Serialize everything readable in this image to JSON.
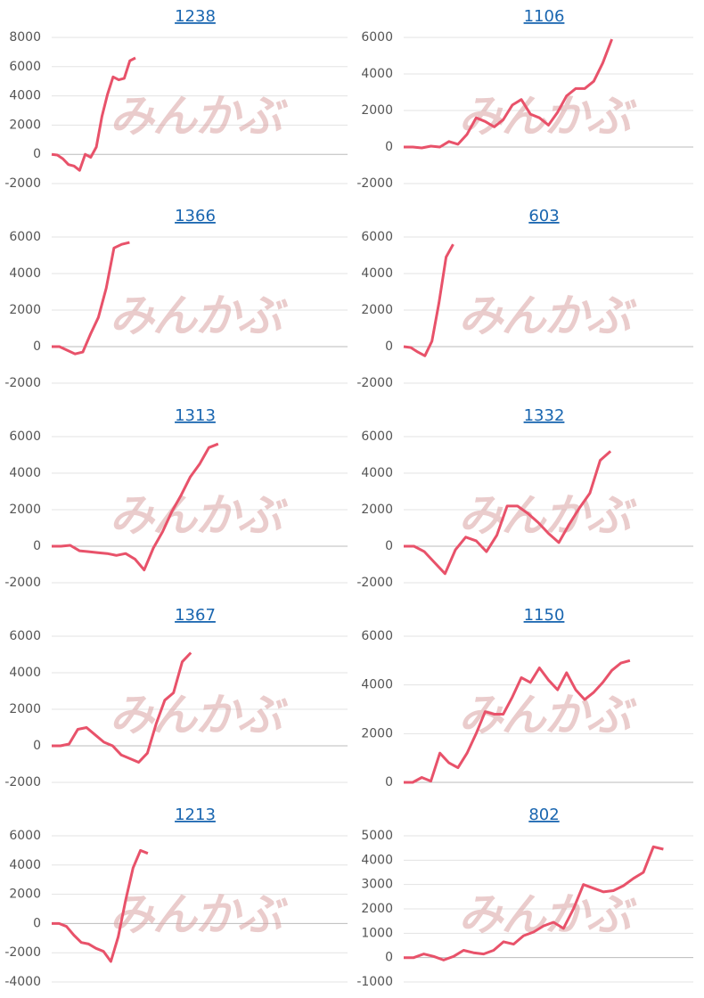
{
  "watermark": "みんかぶ",
  "chart_data": [
    {
      "type": "line",
      "title": "1238",
      "ylim": [
        -2000,
        8000
      ],
      "yticks": [
        -2000,
        0,
        2000,
        4000,
        6000,
        8000
      ],
      "grid": true,
      "series": [
        {
          "color": "#e8526a",
          "values": [
            0,
            -50,
            -300,
            -700,
            -800,
            -1100,
            0,
            -200,
            500,
            2600,
            4100,
            5300,
            5100,
            5200,
            6400,
            6600,
            null,
            null,
            null,
            null,
            null,
            null,
            null,
            null,
            null,
            null,
            null,
            null,
            null,
            null,
            null,
            null,
            null,
            null,
            null,
            null,
            null,
            null,
            null,
            null,
            null,
            null,
            null,
            null,
            null,
            null,
            null,
            null,
            null,
            null,
            null,
            null,
            null,
            null
          ]
        }
      ]
    },
    {
      "type": "line",
      "title": "1106",
      "ylim": [
        -2000,
        6000
      ],
      "yticks": [
        -2000,
        0,
        2000,
        4000,
        6000
      ],
      "grid": true,
      "series": [
        {
          "color": "#e8526a",
          "values": [
            0,
            0,
            -50,
            50,
            0,
            300,
            150,
            700,
            1600,
            1400,
            1100,
            1500,
            2300,
            2600,
            1800,
            1600,
            1200,
            1900,
            2800,
            3200,
            3200,
            3600,
            4600,
            5900,
            null,
            null,
            null,
            null,
            null,
            null,
            null,
            null,
            null
          ]
        }
      ]
    },
    {
      "type": "line",
      "title": "1366",
      "ylim": [
        -2000,
        6000
      ],
      "yticks": [
        -2000,
        0,
        2000,
        4000,
        6000
      ],
      "grid": true,
      "series": [
        {
          "color": "#e8526a",
          "values": [
            0,
            0,
            -200,
            -400,
            -300,
            700,
            1600,
            3200,
            5400,
            5600,
            5700,
            null,
            null,
            null,
            null,
            null,
            null,
            null,
            null,
            null,
            null,
            null,
            null,
            null,
            null,
            null,
            null,
            null,
            null,
            null,
            null,
            null,
            null,
            null,
            null,
            null,
            null,
            null,
            null
          ]
        }
      ]
    },
    {
      "type": "line",
      "title": "603",
      "ylim": [
        -2000,
        6000
      ],
      "yticks": [
        -2000,
        0,
        2000,
        4000,
        6000
      ],
      "grid": true,
      "series": [
        {
          "color": "#e8526a",
          "values": [
            0,
            -50,
            -300,
            -500,
            300,
            2400,
            4900,
            5600,
            null,
            null,
            null,
            null,
            null,
            null,
            null,
            null,
            null,
            null,
            null,
            null,
            null,
            null,
            null,
            null,
            null,
            null,
            null,
            null,
            null,
            null,
            null,
            null,
            null,
            null,
            null,
            null,
            null,
            null,
            null,
            null,
            null,
            null
          ]
        }
      ]
    },
    {
      "type": "line",
      "title": "1313",
      "ylim": [
        -2000,
        6000
      ],
      "yticks": [
        -2000,
        0,
        2000,
        4000,
        6000
      ],
      "grid": true,
      "series": [
        {
          "color": "#e8526a",
          "values": [
            0,
            0,
            50,
            -250,
            -300,
            -350,
            -400,
            -500,
            -400,
            -700,
            -1300,
            -100,
            800,
            1900,
            2800,
            3800,
            4500,
            5400,
            5600,
            null,
            null,
            null,
            null,
            null,
            null,
            null,
            null,
            null,
            null,
            null,
            null,
            null,
            null
          ]
        }
      ]
    },
    {
      "type": "line",
      "title": "1332",
      "ylim": [
        -2000,
        6000
      ],
      "yticks": [
        -2000,
        0,
        2000,
        4000,
        6000
      ],
      "grid": true,
      "series": [
        {
          "color": "#e8526a",
          "values": [
            0,
            0,
            -300,
            -900,
            -1500,
            -200,
            500,
            300,
            -300,
            600,
            2200,
            2200,
            1800,
            1300,
            700,
            200,
            1200,
            2100,
            2900,
            4700,
            5200,
            null,
            null,
            null,
            null,
            null,
            null,
            null,
            null
          ]
        }
      ]
    },
    {
      "type": "line",
      "title": "1367",
      "ylim": [
        -2000,
        6000
      ],
      "yticks": [
        -2000,
        0,
        2000,
        4000,
        6000
      ],
      "grid": true,
      "series": [
        {
          "color": "#e8526a",
          "values": [
            0,
            0,
            100,
            900,
            1000,
            600,
            200,
            0,
            -500,
            -700,
            -900,
            -400,
            1200,
            2500,
            2900,
            4600,
            5100,
            null,
            null,
            null,
            null,
            null,
            null,
            null,
            null,
            null,
            null,
            null,
            null,
            null,
            null,
            null,
            null,
            null,
            null
          ]
        }
      ]
    },
    {
      "type": "line",
      "title": "1150",
      "ylim": [
        0,
        6000
      ],
      "yticks": [
        0,
        2000,
        4000,
        6000
      ],
      "grid": true,
      "series": [
        {
          "color": "#e8526a",
          "values": [
            0,
            0,
            200,
            50,
            1200,
            800,
            600,
            1200,
            2000,
            2900,
            2800,
            2800,
            3500,
            4300,
            4100,
            4700,
            4200,
            3800,
            4500,
            3800,
            3400,
            3700,
            4100,
            4600,
            4900,
            5000,
            null,
            null,
            null,
            null,
            null,
            null,
            null
          ]
        }
      ]
    },
    {
      "type": "line",
      "title": "1213",
      "ylim": [
        -4000,
        6000
      ],
      "yticks": [
        -4000,
        -2000,
        0,
        2000,
        4000,
        6000
      ],
      "grid": true,
      "series": [
        {
          "color": "#e8526a",
          "values": [
            0,
            0,
            -200,
            -800,
            -1300,
            -1400,
            -1700,
            -1900,
            -2600,
            -900,
            1600,
            3800,
            5000,
            4800,
            null,
            null,
            null,
            null,
            null,
            null,
            null,
            null,
            null,
            null,
            null,
            null,
            null,
            null,
            null,
            null,
            null,
            null,
            null,
            null,
            null,
            null,
            null,
            null,
            null,
            null,
            null
          ]
        }
      ]
    },
    {
      "type": "line",
      "title": "802",
      "ylim": [
        -1000,
        5000
      ],
      "yticks": [
        -1000,
        0,
        1000,
        2000,
        3000,
        4000,
        5000
      ],
      "grid": true,
      "series": [
        {
          "color": "#e8526a",
          "values": [
            0,
            0,
            150,
            50,
            -100,
            50,
            300,
            200,
            150,
            300,
            650,
            550,
            900,
            1050,
            1300,
            1450,
            1200,
            2000,
            3000,
            2850,
            2700,
            2750,
            2950,
            3250,
            3500,
            4550,
            4450,
            null,
            null,
            null
          ]
        }
      ]
    }
  ]
}
